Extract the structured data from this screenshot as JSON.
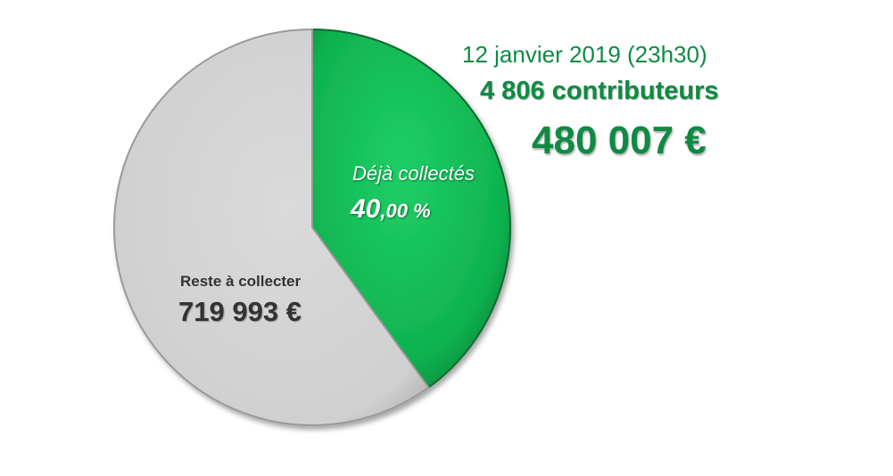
{
  "header": {
    "date": "12 janvier 2019 (23h30)",
    "contributors": "4 806 contributeurs",
    "amount_collected": "480 007 €"
  },
  "chart_data": {
    "type": "pie",
    "slices": [
      {
        "label": "Déjà collectés",
        "value": 480007,
        "display_pct": "40",
        "display_pct_dec": ",00 %",
        "color": "#12b653"
      },
      {
        "label": "Reste à collecter",
        "value": 719993,
        "display_value": "719 993 €",
        "color": "#d4d4d4"
      }
    ]
  }
}
